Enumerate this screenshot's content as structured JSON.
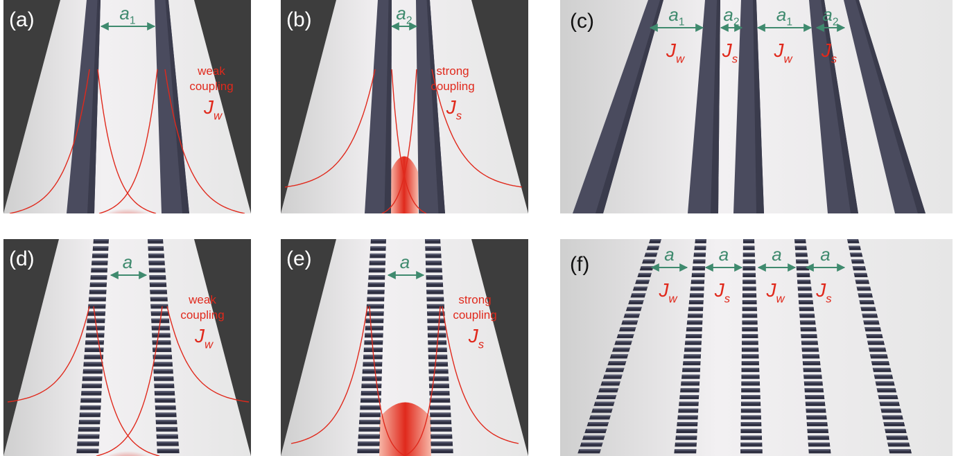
{
  "panels": [
    {
      "id": "a",
      "label": "(a)",
      "kind": "continuous",
      "pair": true,
      "gap_label": {
        "main": "a",
        "sub": "1"
      },
      "coupling": [
        "weak",
        "coupling"
      ],
      "J": {
        "main": "J",
        "sub": "w"
      }
    },
    {
      "id": "b",
      "label": "(b)",
      "kind": "continuous",
      "pair": true,
      "gap_label": {
        "main": "a",
        "sub": "2"
      },
      "coupling": [
        "strong",
        "coupling"
      ],
      "J": {
        "main": "J",
        "sub": "s"
      }
    },
    {
      "id": "c",
      "label": "(c)",
      "kind": "continuous",
      "pair": false,
      "gaps": [
        {
          "main": "a",
          "sub": "1",
          "J": "w"
        },
        {
          "main": "a",
          "sub": "2",
          "J": "s"
        },
        {
          "main": "a",
          "sub": "1",
          "J": "w"
        },
        {
          "main": "a",
          "sub": "2",
          "J": "s"
        }
      ]
    },
    {
      "id": "d",
      "label": "(d)",
      "kind": "segmented",
      "pair": true,
      "gap_label": {
        "main": "a",
        "sub": ""
      },
      "coupling": [
        "weak",
        "coupling"
      ],
      "J": {
        "main": "J",
        "sub": "w"
      }
    },
    {
      "id": "e",
      "label": "(e)",
      "kind": "segmented",
      "pair": true,
      "gap_label": {
        "main": "a",
        "sub": ""
      },
      "coupling": [
        "strong",
        "coupling"
      ],
      "J": {
        "main": "J",
        "sub": "s"
      }
    },
    {
      "id": "f",
      "label": "(f)",
      "kind": "segmented",
      "pair": false,
      "gaps": [
        {
          "main": "a",
          "sub": "",
          "J": "w"
        },
        {
          "main": "a",
          "sub": "",
          "J": "s"
        },
        {
          "main": "a",
          "sub": "",
          "J": "w"
        },
        {
          "main": "a",
          "sub": "",
          "J": "s"
        }
      ]
    }
  ],
  "colors": {
    "background_dark": "#3d3d3d",
    "substrate": "#ededed",
    "waveguide": "#4a4b5e",
    "arrow": "#3f8a6e",
    "field": "#e0291c",
    "label_text": "#111111"
  }
}
